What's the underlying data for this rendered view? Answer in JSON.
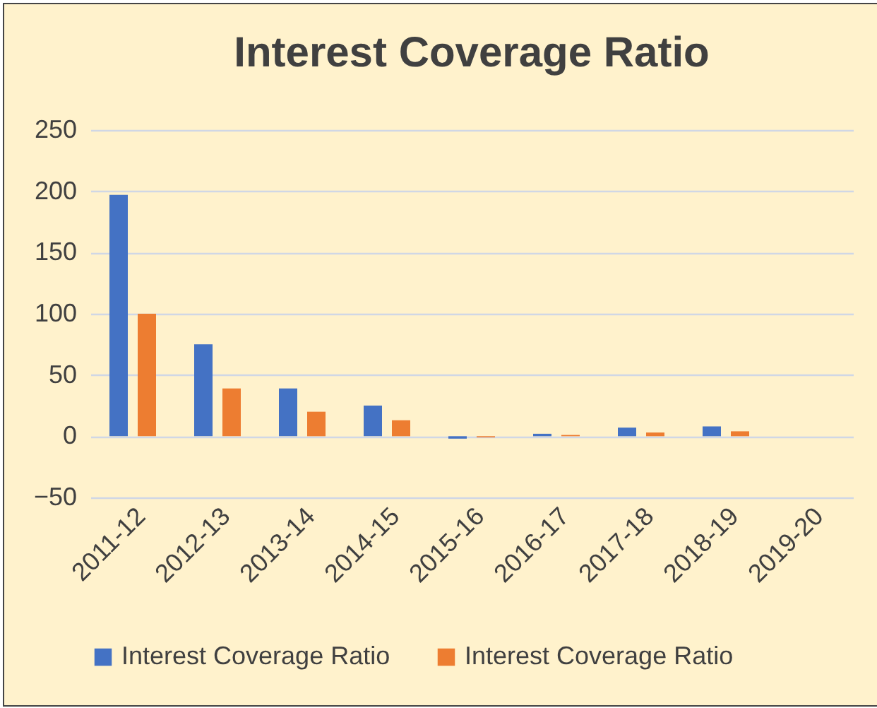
{
  "chart_data": {
    "type": "bar",
    "title": "Interest Coverage Ratio",
    "categories": [
      "2011-12",
      "2012-13",
      "2013-14",
      "2014-15",
      "2015-16",
      "2016-17",
      "2017-18",
      "2018-19",
      "2019-20"
    ],
    "series": [
      {
        "name": "Interest Coverage Ratio",
        "color": "#4472c4",
        "values": [
          197,
          75,
          39,
          25,
          -2,
          2,
          7,
          8,
          0
        ]
      },
      {
        "name": "Interest Coverage Ratio",
        "color": "#ed7d31",
        "values": [
          100,
          39,
          20,
          13,
          -1,
          1,
          3,
          4,
          0
        ]
      }
    ],
    "ylim": [
      -50,
      250
    ],
    "yticks": [
      -50,
      0,
      50,
      100,
      150,
      200,
      250
    ],
    "grid": "y",
    "legend": "bottom"
  }
}
